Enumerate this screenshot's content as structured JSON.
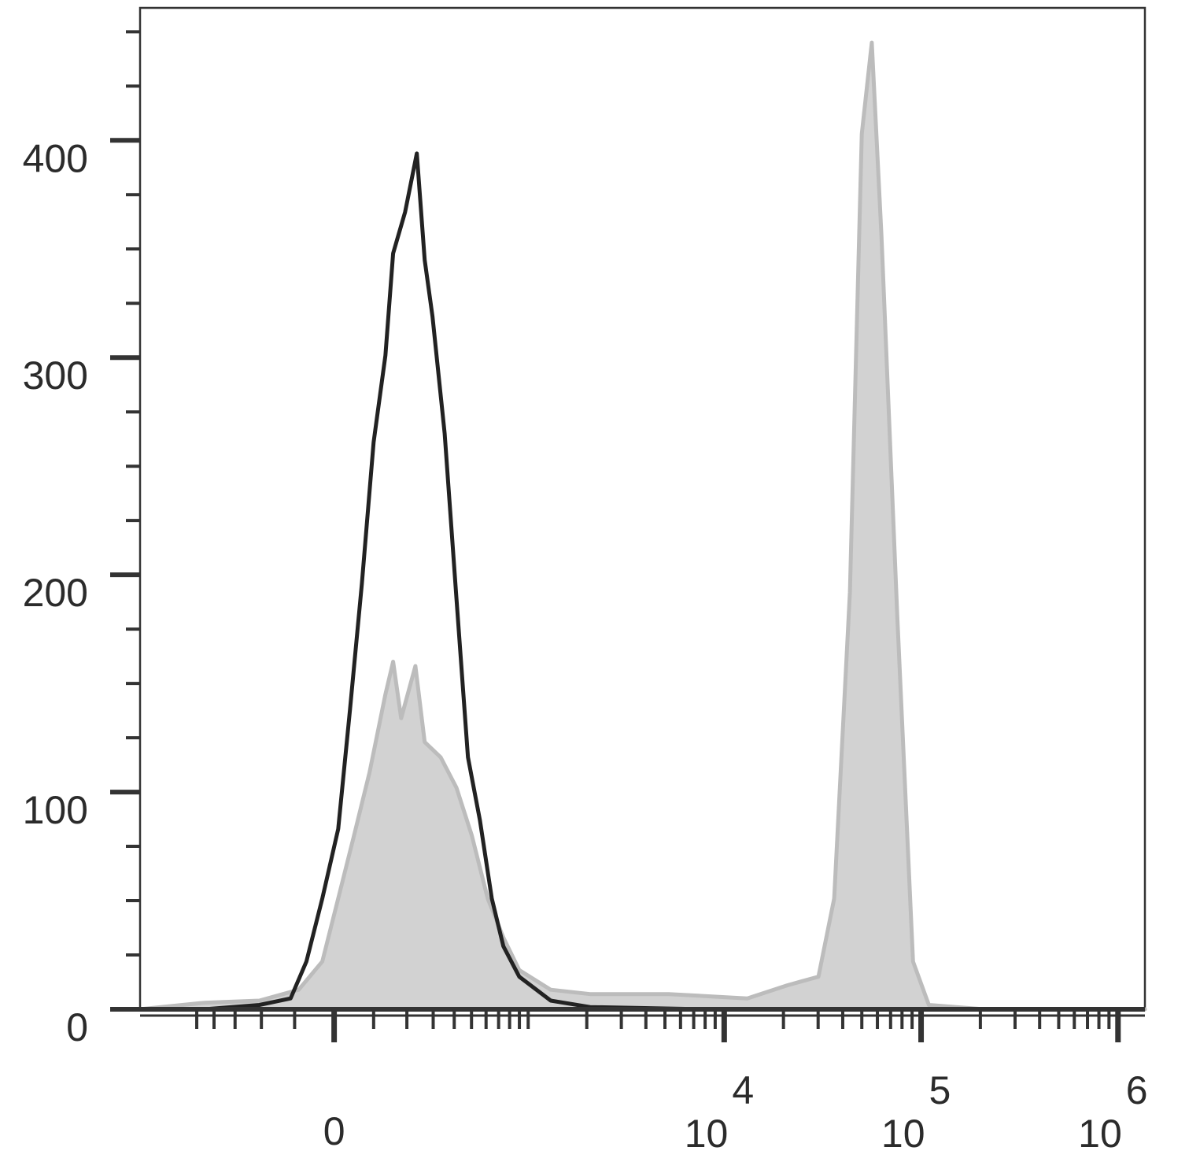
{
  "chart_data": {
    "type": "histogram-overlay",
    "x_transform": {
      "type": "arcsinh",
      "cofactor": 209
    },
    "xlim": [
      -1000,
      1370000
    ],
    "ylim": [
      0,
      461
    ],
    "xticks": [
      0,
      {
        "value": 10000,
        "label": "10",
        "exponent": "4"
      },
      {
        "value": 100000,
        "label": "10",
        "exponent": "5"
      },
      {
        "value": 1000000,
        "label": "10",
        "exponent": "6"
      }
    ],
    "xticks_minor": [
      -500,
      -400,
      -300,
      -200,
      -100,
      100,
      200,
      300,
      400,
      500,
      600,
      700,
      800,
      900,
      1000,
      2000,
      3000,
      4000,
      5000,
      6000,
      7000,
      8000,
      9000,
      20000,
      30000,
      40000,
      50000,
      60000,
      70000,
      80000,
      90000,
      200000,
      300000,
      400000,
      500000,
      600000,
      700000,
      800000,
      900000
    ],
    "yticks": [
      0,
      100,
      200,
      300,
      400
    ],
    "yticks_minor": [
      25,
      50,
      75,
      125,
      150,
      175,
      225,
      250,
      275,
      325,
      350,
      375,
      425,
      450
    ],
    "series": [
      {
        "color": "#bcbcbc",
        "fill": "#d2d2d2",
        "x": [
          -1005,
          -453,
          -207,
          -89,
          -29,
          10,
          49,
          89,
          133,
          156,
          181,
          230,
          265,
          333,
          412,
          502,
          612,
          742,
          899,
          1308,
          2080,
          5230,
          13100,
          20900,
          30100,
          36200,
          43500,
          50000,
          56200,
          62900,
          75700,
          91000,
          109500,
          208600,
          1371000
        ],
        "values": [
          0,
          3,
          4,
          9,
          22,
          51,
          80,
          109,
          145,
          160,
          134,
          158,
          123,
          116,
          102,
          80,
          51,
          33,
          18,
          9,
          7,
          7,
          5,
          11,
          15,
          51,
          192,
          403,
          445,
          356,
          181,
          22,
          2,
          0,
          0
        ]
      },
      {
        "color": "#222222",
        "x": [
          -1005,
          -453,
          -207,
          -111,
          -69,
          -29,
          10,
          39,
          69,
          100,
          133,
          156,
          194,
          235,
          265,
          297,
          352,
          412,
          478,
          556,
          644,
          742,
          899,
          1308,
          2080,
          8290,
          1371000
        ],
        "values": [
          0,
          0,
          2,
          5,
          22,
          51,
          83,
          138,
          196,
          261,
          301,
          348,
          367,
          394,
          345,
          319,
          265,
          189,
          116,
          87,
          51,
          29,
          15,
          4,
          1,
          0,
          0
        ]
      }
    ]
  }
}
